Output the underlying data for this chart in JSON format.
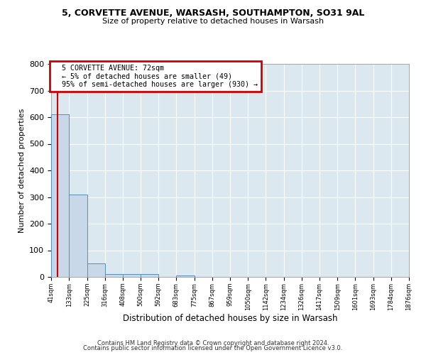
{
  "title1": "5, CORVETTE AVENUE, WARSASH, SOUTHAMPTON, SO31 9AL",
  "title2": "Size of property relative to detached houses in Warsash",
  "xlabel": "Distribution of detached houses by size in Warsash",
  "ylabel": "Number of detached properties",
  "bin_edges": [
    41,
    133,
    225,
    316,
    408,
    500,
    592,
    683,
    775,
    867,
    959,
    1050,
    1142,
    1234,
    1326,
    1417,
    1509,
    1601,
    1693,
    1784,
    1876
  ],
  "bar_heights": [
    610,
    310,
    50,
    10,
    12,
    12,
    0,
    6,
    0,
    0,
    0,
    0,
    0,
    0,
    0,
    0,
    0,
    0,
    0,
    0
  ],
  "bar_color": "#c8d8e8",
  "bar_edge_color": "#5b8db8",
  "property_size": 72,
  "property_label": "5 CORVETTE AVENUE: 72sqm",
  "pct_smaller_arrow": "← 5% of detached houses are smaller (49)",
  "pct_larger": "95% of semi-detached houses are larger (930) →",
  "annotation_box_color": "#cc0000",
  "vline_color": "#cc0000",
  "ylim": [
    0,
    800
  ],
  "yticks": [
    0,
    100,
    200,
    300,
    400,
    500,
    600,
    700,
    800
  ],
  "grid_color": "#c8d8e8",
  "bg_color": "#dce8f0",
  "footer1": "Contains HM Land Registry data © Crown copyright and database right 2024.",
  "footer2": "Contains public sector information licensed under the Open Government Licence v3.0."
}
